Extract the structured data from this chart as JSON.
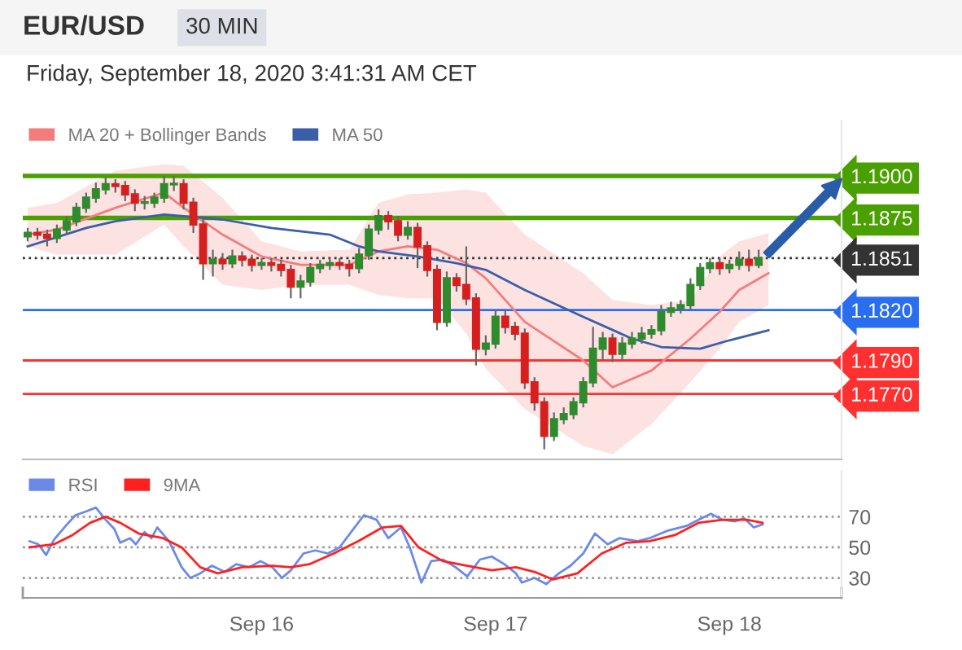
{
  "chart_data": [
    {
      "type": "candlestick",
      "title": "EUR/USD",
      "subtitle": "30 MIN",
      "annotations": [
        "Friday, September 18, 2020 3:41:31 AM CET"
      ],
      "x": [
        "2020-09-15T00:00",
        "2020-09-15T01:00",
        "2020-09-15T02:00",
        "2020-09-15T03:00",
        "2020-09-15T04:00",
        "2020-09-15T05:00",
        "2020-09-15T06:00",
        "2020-09-15T07:00",
        "2020-09-15T08:00",
        "2020-09-15T09:00",
        "2020-09-15T10:00",
        "2020-09-15T11:00",
        "2020-09-15T12:00",
        "2020-09-15T13:00",
        "2020-09-15T14:00",
        "2020-09-15T15:00",
        "2020-09-15T16:00",
        "2020-09-15T17:00",
        "2020-09-15T18:00",
        "2020-09-15T19:00",
        "2020-09-15T20:00",
        "2020-09-15T21:00",
        "2020-09-15T22:00",
        "2020-09-15T23:00",
        "2020-09-16T00:00",
        "2020-09-16T01:00",
        "2020-09-16T02:00",
        "2020-09-16T03:00",
        "2020-09-16T04:00",
        "2020-09-16T05:00",
        "2020-09-16T06:00",
        "2020-09-16T07:00",
        "2020-09-16T08:00",
        "2020-09-16T09:00",
        "2020-09-16T10:00",
        "2020-09-16T11:00",
        "2020-09-16T12:00",
        "2020-09-16T13:00",
        "2020-09-16T14:00",
        "2020-09-16T15:00",
        "2020-09-16T16:00",
        "2020-09-16T17:00",
        "2020-09-16T18:00",
        "2020-09-16T19:00",
        "2020-09-16T20:00",
        "2020-09-16T21:00",
        "2020-09-16T22:00",
        "2020-09-16T23:00",
        "2020-09-17T00:00",
        "2020-09-17T01:00",
        "2020-09-17T02:00",
        "2020-09-17T03:00",
        "2020-09-17T04:00",
        "2020-09-17T05:00",
        "2020-09-17T06:00",
        "2020-09-17T07:00",
        "2020-09-17T08:00",
        "2020-09-17T09:00",
        "2020-09-17T10:00",
        "2020-09-17T11:00",
        "2020-09-17T12:00",
        "2020-09-17T13:00",
        "2020-09-17T14:00",
        "2020-09-17T15:00",
        "2020-09-17T16:00",
        "2020-09-17T17:00",
        "2020-09-17T18:00",
        "2020-09-17T19:00",
        "2020-09-17T20:00",
        "2020-09-17T21:00",
        "2020-09-17T22:00",
        "2020-09-17T23:00",
        "2020-09-18T00:00",
        "2020-09-18T01:00",
        "2020-09-18T02:00",
        "2020-09-18T03:00"
      ],
      "ohlc": [
        [
          1.1864,
          1.1869,
          1.1861,
          1.1866
        ],
        [
          1.1866,
          1.1869,
          1.1862,
          1.1865
        ],
        [
          1.1865,
          1.1868,
          1.1858,
          1.1863
        ],
        [
          1.1863,
          1.1871,
          1.186,
          1.1868
        ],
        [
          1.1868,
          1.1876,
          1.1865,
          1.1873
        ],
        [
          1.1873,
          1.1884,
          1.187,
          1.1881
        ],
        [
          1.1881,
          1.189,
          1.1878,
          1.1887
        ],
        [
          1.1887,
          1.1896,
          1.1884,
          1.1892
        ],
        [
          1.1892,
          1.1899,
          1.1889,
          1.1895
        ],
        [
          1.1895,
          1.1898,
          1.189,
          1.1894
        ],
        [
          1.1894,
          1.1897,
          1.1885,
          1.1889
        ],
        [
          1.1889,
          1.1892,
          1.1879,
          1.1884
        ],
        [
          1.1884,
          1.1888,
          1.188,
          1.1884
        ],
        [
          1.1884,
          1.189,
          1.1881,
          1.1887
        ],
        [
          1.1887,
          1.19,
          1.1884,
          1.1895
        ],
        [
          1.1895,
          1.19,
          1.1891,
          1.1895
        ],
        [
          1.1895,
          1.1898,
          1.188,
          1.1884
        ],
        [
          1.1884,
          1.1887,
          1.1866,
          1.1871
        ],
        [
          1.1871,
          1.1874,
          1.1838,
          1.1848
        ],
        [
          1.1848,
          1.1856,
          1.184,
          1.185
        ],
        [
          1.185,
          1.1854,
          1.1844,
          1.1848
        ],
        [
          1.1848,
          1.1856,
          1.1845,
          1.1852
        ],
        [
          1.1852,
          1.1855,
          1.1846,
          1.185
        ],
        [
          1.185,
          1.1853,
          1.1843,
          1.1847
        ],
        [
          1.1847,
          1.1851,
          1.1844,
          1.1848
        ],
        [
          1.1848,
          1.1851,
          1.1843,
          1.1847
        ],
        [
          1.1847,
          1.185,
          1.184,
          1.1844
        ],
        [
          1.1844,
          1.1847,
          1.1827,
          1.1834
        ],
        [
          1.1834,
          1.1841,
          1.1827,
          1.1837
        ],
        [
          1.1837,
          1.1848,
          1.1834,
          1.1845
        ],
        [
          1.1845,
          1.185,
          1.1842,
          1.1847
        ],
        [
          1.1847,
          1.1851,
          1.1844,
          1.1848
        ],
        [
          1.1848,
          1.1851,
          1.1844,
          1.1847
        ],
        [
          1.1847,
          1.185,
          1.184,
          1.1845
        ],
        [
          1.1845,
          1.1857,
          1.1842,
          1.1853
        ],
        [
          1.1853,
          1.1871,
          1.185,
          1.1868
        ],
        [
          1.1868,
          1.188,
          1.1865,
          1.1876
        ],
        [
          1.1876,
          1.1879,
          1.1868,
          1.1873
        ],
        [
          1.1873,
          1.1876,
          1.1861,
          1.1865
        ],
        [
          1.1865,
          1.1873,
          1.1862,
          1.1869
        ],
        [
          1.1869,
          1.1872,
          1.1845,
          1.1858
        ],
        [
          1.1858,
          1.1861,
          1.184,
          1.1844
        ],
        [
          1.1844,
          1.1847,
          1.1808,
          1.1813
        ],
        [
          1.1813,
          1.1843,
          1.181,
          1.1839
        ],
        [
          1.1839,
          1.1842,
          1.1831,
          1.1835
        ],
        [
          1.1835,
          1.1858,
          1.1823,
          1.1827
        ],
        [
          1.1827,
          1.183,
          1.1787,
          1.1797
        ],
        [
          1.1797,
          1.1805,
          1.1793,
          1.18
        ],
        [
          1.18,
          1.182,
          1.1797,
          1.1816
        ],
        [
          1.1816,
          1.182,
          1.1806,
          1.181
        ],
        [
          1.181,
          1.1813,
          1.1802,
          1.1806
        ],
        [
          1.1806,
          1.1809,
          1.1773,
          1.1777
        ],
        [
          1.1777,
          1.178,
          1.176,
          1.1765
        ],
        [
          1.1765,
          1.1768,
          1.1737,
          1.1745
        ],
        [
          1.1745,
          1.1759,
          1.1742,
          1.1755
        ],
        [
          1.1755,
          1.1762,
          1.1752,
          1.1758
        ],
        [
          1.1758,
          1.1768,
          1.1755,
          1.1765
        ],
        [
          1.1765,
          1.178,
          1.1762,
          1.1777
        ],
        [
          1.1777,
          1.181,
          1.1774,
          1.1797
        ],
        [
          1.1797,
          1.1807,
          1.179,
          1.1803
        ],
        [
          1.1803,
          1.1806,
          1.1789,
          1.1794
        ],
        [
          1.1794,
          1.1804,
          1.179,
          1.18
        ],
        [
          1.18,
          1.1807,
          1.1797,
          1.1803
        ],
        [
          1.1803,
          1.181,
          1.18,
          1.1806
        ],
        [
          1.1806,
          1.1811,
          1.1803,
          1.1808
        ],
        [
          1.1808,
          1.1823,
          1.1805,
          1.1819
        ],
        [
          1.1819,
          1.1825,
          1.1816,
          1.1821
        ],
        [
          1.1821,
          1.1826,
          1.1818,
          1.1823
        ],
        [
          1.1823,
          1.1839,
          1.182,
          1.1835
        ],
        [
          1.1835,
          1.1848,
          1.1832,
          1.1845
        ],
        [
          1.1845,
          1.1851,
          1.1842,
          1.1848
        ],
        [
          1.1848,
          1.1851,
          1.1841,
          1.1845
        ],
        [
          1.1845,
          1.185,
          1.1842,
          1.1847
        ],
        [
          1.1847,
          1.1855,
          1.1844,
          1.185
        ],
        [
          1.185,
          1.1856,
          1.1843,
          1.1847
        ],
        [
          1.1847,
          1.1856,
          1.1845,
          1.1851
        ]
      ],
      "series": [
        {
          "name": "MA 20 + Bollinger Bands",
          "type": "line",
          "color": "#f47c7c",
          "x": [
            "2020-09-15T00:00",
            "2020-09-15T03:00",
            "2020-09-15T09:00",
            "2020-09-15T14:00",
            "2020-09-15T16:00",
            "2020-09-15T20:00",
            "2020-09-16T00:00",
            "2020-09-16T04:00",
            "2020-09-16T09:00",
            "2020-09-16T12:00",
            "2020-09-16T15:00",
            "2020-09-16T18:00",
            "2020-09-16T21:00",
            "2020-09-16T23:00",
            "2020-09-17T03:00",
            "2020-09-17T09:00",
            "2020-09-17T12:00",
            "2020-09-17T16:00",
            "2020-09-17T20:00",
            "2020-09-17T23:00",
            "2020-09-18T01:00",
            "2020-09-18T04:00"
          ],
          "values": [
            1.1865,
            1.1868,
            1.1881,
            1.189,
            1.1881,
            1.1865,
            1.1852,
            1.1847,
            1.1847,
            1.1855,
            1.1858,
            1.1856,
            1.1848,
            1.1839,
            1.1813,
            1.179,
            1.1774,
            1.1784,
            1.1803,
            1.1819,
            1.1832,
            1.1842
          ],
          "upper": [
            1.1881,
            1.1884,
            1.1903,
            1.1907,
            1.1906,
            1.1887,
            1.1861,
            1.1855,
            1.1856,
            1.1884,
            1.1889,
            1.189,
            1.1892,
            1.189,
            1.1865,
            1.1842,
            1.1826,
            1.1823,
            1.1826,
            1.1852,
            1.1861,
            1.1866
          ],
          "lower": [
            1.1858,
            1.1853,
            1.1853,
            1.1871,
            1.1858,
            1.1835,
            1.1832,
            1.1835,
            1.1835,
            1.1829,
            1.1827,
            1.1827,
            1.1806,
            1.1785,
            1.1761,
            1.1739,
            1.1734,
            1.1752,
            1.1777,
            1.1797,
            1.1813,
            1.1823
          ]
        },
        {
          "name": "MA 50",
          "type": "line",
          "color": "#3a5fa8",
          "x": [
            "2020-09-15T00:00",
            "2020-09-15T06:00",
            "2020-09-15T09:00",
            "2020-09-15T14:00",
            "2020-09-15T20:00",
            "2020-09-16T01:00",
            "2020-09-16T07:00",
            "2020-09-16T10:00",
            "2020-09-16T12:00",
            "2020-09-16T16:00",
            "2020-09-16T20:00",
            "2020-09-16T23:00",
            "2020-09-17T03:00",
            "2020-09-17T09:00",
            "2020-09-17T14:00",
            "2020-09-17T17:00",
            "2020-09-17T21:00",
            "2020-09-18T00:00",
            "2020-09-18T04:00"
          ],
          "values": [
            1.1858,
            1.1869,
            1.1873,
            1.1877,
            1.1874,
            1.1869,
            1.1865,
            1.1858,
            1.1855,
            1.1852,
            1.1848,
            1.1844,
            1.1832,
            1.1816,
            1.1803,
            1.1798,
            1.1797,
            1.1802,
            1.1808
          ]
        }
      ],
      "ref_lines": [
        {
          "axis": "y",
          "value": 1.19,
          "color": "#4aa000"
        },
        {
          "axis": "y",
          "value": 1.1875,
          "color": "#4aa000"
        },
        {
          "axis": "y",
          "value": 1.1851,
          "color": "#333333",
          "line_style": "dotted"
        },
        {
          "axis": "y",
          "value": 1.182,
          "color": "#2a6ef0"
        },
        {
          "axis": "y",
          "value": 1.179,
          "color": "#ff3030"
        },
        {
          "axis": "y",
          "value": 1.177,
          "color": "#ff3030"
        }
      ],
      "xlim": [
        "2020-09-14T23:30",
        "2020-09-18T11:30"
      ],
      "ylim": [
        1.1731,
        1.1933
      ],
      "yticks": [
        {
          "value": 1.19,
          "label": "1.1900"
        },
        {
          "value": 1.1875,
          "label": "1.1875"
        },
        {
          "value": 1.1851,
          "label": "1.1851"
        },
        {
          "value": 1.182,
          "label": "1.1820"
        },
        {
          "value": 1.179,
          "label": "1.1790"
        },
        {
          "value": 1.177,
          "label": "1.1770"
        }
      ],
      "legend": "top left",
      "marker": "none"
    },
    {
      "type": "line",
      "series": [
        {
          "name": "RSI",
          "color": "#6a8ae6",
          "x": [
            "2020-09-15T00:12",
            "2020-09-15T01:06",
            "2020-09-15T01:54",
            "2020-09-15T02:42",
            "2020-09-15T03:54",
            "2020-09-15T04:54",
            "2020-09-15T05:48",
            "2020-09-15T07:00",
            "2020-09-15T08:00",
            "2020-09-15T08:54",
            "2020-09-15T09:30",
            "2020-09-15T10:30",
            "2020-09-15T11:06",
            "2020-09-15T12:00",
            "2020-09-15T12:42",
            "2020-09-15T13:18",
            "2020-09-15T14:30",
            "2020-09-15T15:48",
            "2020-09-15T16:42",
            "2020-09-15T17:42",
            "2020-09-15T18:54",
            "2020-09-15T20:12",
            "2020-09-15T21:24",
            "2020-09-15T22:42",
            "2020-09-15T23:54",
            "2020-09-16T01:06",
            "2020-09-16T02:06",
            "2020-09-16T03:00",
            "2020-09-16T04:18",
            "2020-09-16T05:30",
            "2020-09-16T06:48",
            "2020-09-16T08:00",
            "2020-09-16T09:18",
            "2020-09-16T10:30",
            "2020-09-16T11:48",
            "2020-09-16T13:00",
            "2020-09-16T14:18",
            "2020-09-16T15:12",
            "2020-09-16T16:24",
            "2020-09-16T17:24",
            "2020-09-16T18:36",
            "2020-09-16T19:54",
            "2020-09-16T21:06",
            "2020-09-16T22:24",
            "2020-09-16T23:36",
            "2020-09-17T00:54",
            "2020-09-17T02:06",
            "2020-09-17T02:42",
            "2020-09-17T04:00",
            "2020-09-17T05:12",
            "2020-09-17T06:30",
            "2020-09-17T07:42",
            "2020-09-17T09:00",
            "2020-09-17T10:12",
            "2020-09-17T11:30",
            "2020-09-17T12:42",
            "2020-09-17T14:36",
            "2020-09-17T15:48",
            "2020-09-17T17:42",
            "2020-09-17T19:36",
            "2020-09-17T20:48",
            "2020-09-17T22:06",
            "2020-09-17T23:18",
            "2020-09-18T00:36",
            "2020-09-18T01:30",
            "2020-09-18T02:30",
            "2020-09-18T03:24"
          ],
          "values": [
            54,
            52,
            45,
            55,
            64,
            71,
            73,
            76,
            68,
            62,
            53,
            56,
            52,
            60,
            56,
            63,
            54,
            37,
            30,
            33,
            38,
            34,
            39,
            37,
            41,
            37,
            30,
            35,
            46,
            48,
            46,
            50,
            61,
            71,
            68,
            56,
            63,
            50,
            27,
            41,
            42,
            37,
            31,
            42,
            44,
            39,
            33,
            27,
            30,
            26,
            33,
            38,
            46,
            59,
            52,
            56,
            54,
            56,
            61,
            64,
            68,
            72,
            68,
            67,
            69,
            63,
            65
          ]
        },
        {
          "name": "9MA",
          "color": "#ff2020",
          "x": [
            "2020-09-15T00:12",
            "2020-09-15T02:42",
            "2020-09-15T04:36",
            "2020-09-15T06:24",
            "2020-09-15T08:00",
            "2020-09-15T09:30",
            "2020-09-15T11:24",
            "2020-09-15T13:54",
            "2020-09-15T15:48",
            "2020-09-15T17:42",
            "2020-09-15T19:30",
            "2020-09-15T22:00",
            "2020-09-16T01:06",
            "2020-09-16T03:00",
            "2020-09-16T04:54",
            "2020-09-16T07:24",
            "2020-09-16T09:54",
            "2020-09-16T12:24",
            "2020-09-16T14:18",
            "2020-09-16T16:06",
            "2020-09-16T18:36",
            "2020-09-16T21:06",
            "2020-09-16T23:36",
            "2020-09-17T02:06",
            "2020-09-17T04:00",
            "2020-09-17T05:54",
            "2020-09-17T08:24",
            "2020-09-17T10:54",
            "2020-09-17T13:24",
            "2020-09-17T15:48",
            "2020-09-17T18:24",
            "2020-09-17T20:48",
            "2020-09-17T23:18",
            "2020-09-18T01:48",
            "2020-09-18T03:24"
          ],
          "values": [
            50,
            52,
            58,
            66,
            70,
            66,
            59,
            56,
            50,
            37,
            33,
            37,
            38,
            37,
            39,
            46,
            54,
            63,
            64,
            50,
            41,
            38,
            35,
            37,
            34,
            29,
            33,
            46,
            53,
            54,
            58,
            66,
            68,
            68,
            66
          ]
        }
      ],
      "xlim": [
        "2020-09-14T23:30",
        "2020-09-18T11:30"
      ],
      "ylim": [
        17,
        100
      ],
      "yticks": [
        30,
        50,
        70
      ],
      "xticks": [
        {
          "value": "2020-09-16",
          "label": "Sep 16"
        },
        {
          "value": "2020-09-17",
          "label": "Sep 17"
        },
        {
          "value": "2020-09-18",
          "label": "Sep 18"
        }
      ],
      "grid": "y",
      "legend": "top left",
      "marker": "none"
    }
  ]
}
